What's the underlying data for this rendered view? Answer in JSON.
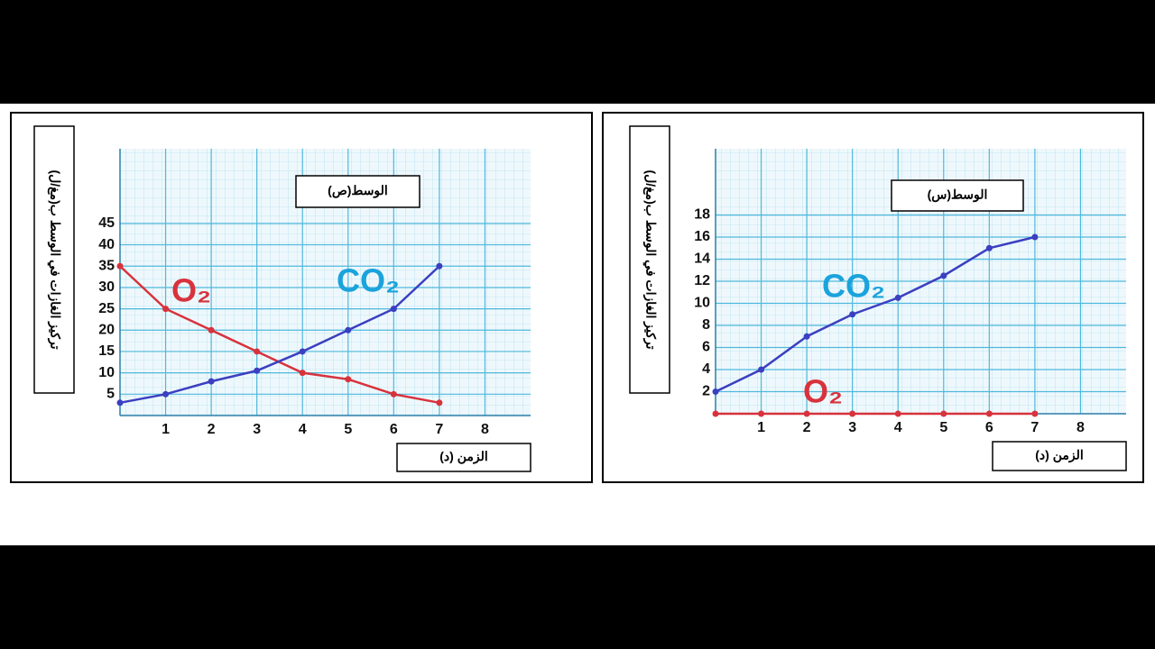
{
  "chart_data": [
    {
      "type": "line",
      "title": "الوسط(ص)",
      "ylabel": "تركيز الغازات في الوسط ب(مغ/ل)",
      "xlabel": "الزمن (د)",
      "x": [
        0,
        1,
        2,
        3,
        4,
        5,
        6,
        7
      ],
      "series": [
        {
          "name": "O₂",
          "color": "#d8323c",
          "values": [
            35,
            25,
            20,
            15,
            10,
            8.5,
            5,
            3
          ]
        },
        {
          "name": "CO₂",
          "color": "#3b3fc0",
          "values": [
            3,
            5,
            8,
            10.5,
            15,
            20,
            25,
            35
          ]
        }
      ],
      "xlim": [
        0,
        9
      ],
      "xticks": [
        1,
        2,
        3,
        4,
        5,
        6,
        7,
        8
      ],
      "ylim": [
        0,
        62.5
      ],
      "yticks": [
        5,
        10,
        15,
        20,
        25,
        30,
        35,
        40,
        45
      ],
      "grid": true
    },
    {
      "type": "line",
      "title": "الوسط(س)",
      "ylabel": "تركيز الغازات في الوسط ب(مغ/ل)",
      "xlabel": "الزمن (د)",
      "x": [
        0,
        1,
        2,
        3,
        4,
        5,
        6,
        7
      ],
      "series": [
        {
          "name": "CO₂",
          "color": "#3b3fc0",
          "values": [
            2,
            4,
            7,
            9,
            10.5,
            12.5,
            15,
            16
          ]
        },
        {
          "name": "O₂",
          "color": "#d8323c",
          "values": [
            0,
            0,
            0,
            0,
            0,
            0,
            0,
            0
          ]
        }
      ],
      "xlim": [
        0,
        9
      ],
      "xticks": [
        1,
        2,
        3,
        4,
        5,
        6,
        7,
        8
      ],
      "ylim": [
        0,
        24
      ],
      "yticks": [
        2,
        4,
        6,
        8,
        10,
        12,
        14,
        16,
        18
      ],
      "grid": true
    }
  ]
}
